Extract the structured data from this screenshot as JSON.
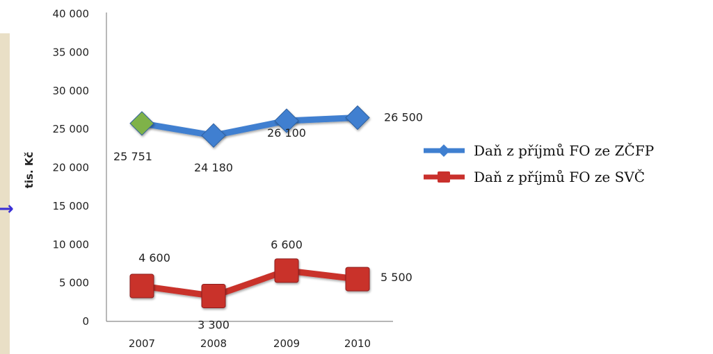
{
  "chart_data": {
    "type": "line",
    "title": "",
    "xlabel": "",
    "ylabel": "tis. Kč",
    "categories": [
      "2007",
      "2008",
      "2009",
      "2010"
    ],
    "ylim": [
      0,
      40000
    ],
    "yticks": [
      0,
      5000,
      10000,
      15000,
      20000,
      25000,
      30000,
      35000,
      40000
    ],
    "ytick_labels": [
      "0",
      "5 000",
      "10 000",
      "15 000",
      "20 000",
      "25 000",
      "30 000",
      "35 000",
      "40 000"
    ],
    "grid": false,
    "legend_position": "right",
    "series": [
      {
        "name": "Daň z příjmů FO ze ZČFP",
        "values": [
          25751,
          24180,
          26100,
          26500
        ],
        "labels": [
          "25 751",
          "24 180",
          "26 100",
          "26 500"
        ],
        "color": "#3f7fd0",
        "marker": "diamond",
        "first_point_color": "#7fb24a"
      },
      {
        "name": "Daň z příjmů FO ze SVČ",
        "values": [
          4600,
          3300,
          6600,
          5500
        ],
        "labels": [
          "4 600",
          "3 300",
          "6 600",
          "5 500"
        ],
        "color": "#c9302c",
        "marker": "square"
      }
    ]
  },
  "arrow_color": "#3a2fd6",
  "arrow_glyph": "→"
}
